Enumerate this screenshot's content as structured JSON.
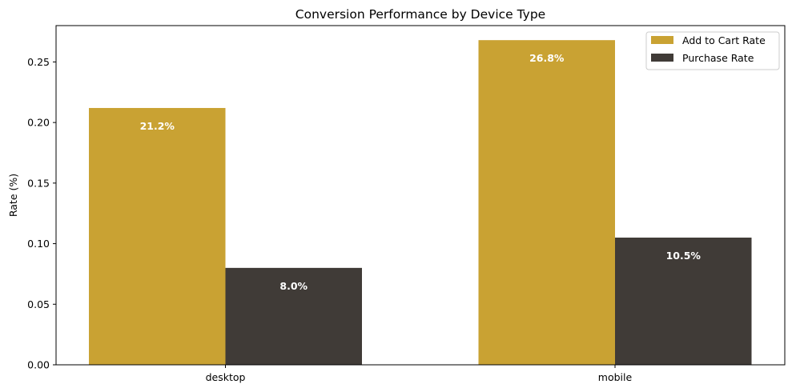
{
  "chart_data": {
    "type": "bar",
    "title": "Conversion Performance by Device Type",
    "xlabel": "",
    "ylabel": "Rate (%)",
    "categories": [
      "desktop",
      "mobile"
    ],
    "series": [
      {
        "name": "Add to Cart Rate",
        "values": [
          0.212,
          0.268
        ],
        "labels": [
          "21.2%",
          "26.8%"
        ],
        "color": "#c9a233"
      },
      {
        "name": "Purchase Rate",
        "values": [
          0.08,
          0.105
        ],
        "labels": [
          "8.0%",
          "10.5%"
        ],
        "color": "#403b37"
      }
    ],
    "ylim": [
      0,
      0.28
    ],
    "yticks": [
      0.0,
      0.05,
      0.1,
      0.15,
      0.2,
      0.25
    ],
    "ytick_labels": [
      "0.00",
      "0.05",
      "0.10",
      "0.15",
      "0.20",
      "0.25"
    ],
    "grid": false,
    "legend_position": "top-right"
  }
}
